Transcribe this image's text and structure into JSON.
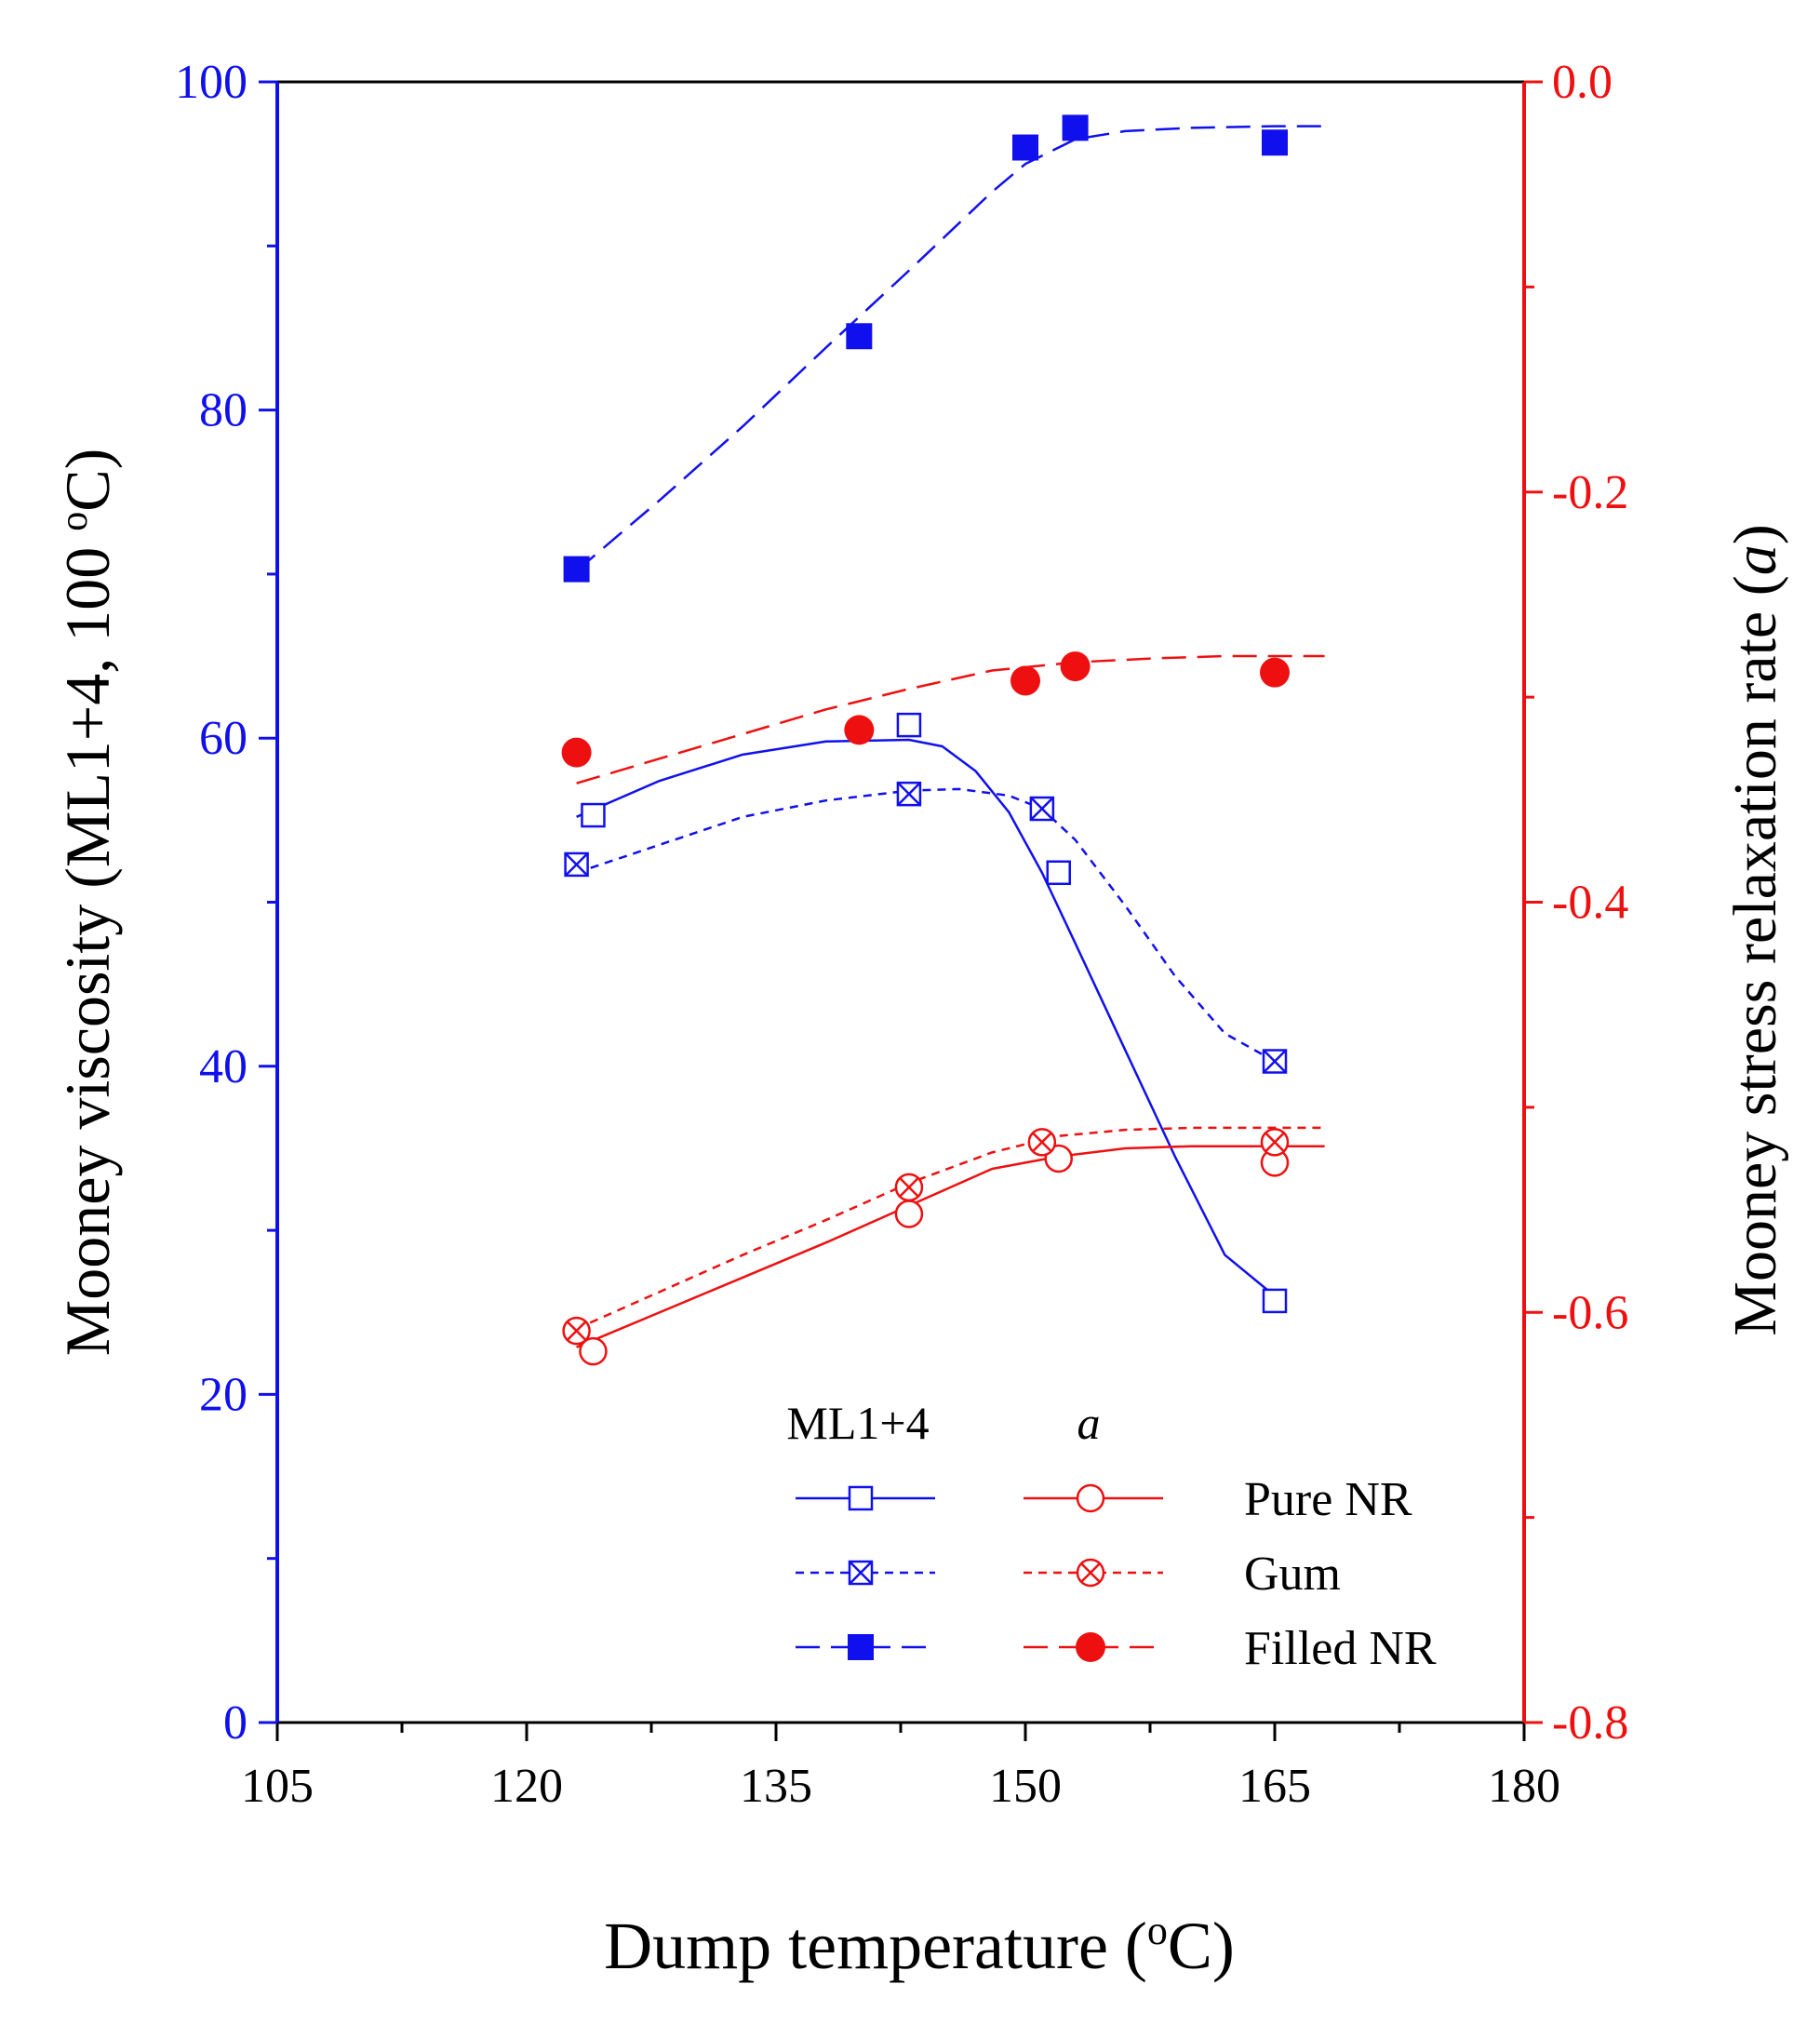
{
  "chart_data": {
    "type": "scatter",
    "xlabel_text": "Dump temperature (",
    "xlabel_sup": "o",
    "xlabel_end": "C)",
    "ylabel_left_text": "Mooney viscosity (ML1+4, 100 ",
    "ylabel_left_sup": "o",
    "ylabel_left_end": "C)",
    "ylabel_right_text": "Mooney stress relaxation rate (",
    "ylabel_right_italic": "a",
    "ylabel_right_end": ")",
    "xlim": [
      105,
      180
    ],
    "ylim_left": [
      0,
      100
    ],
    "ylim_right": [
      -0.8,
      0.0
    ],
    "x_ticks": [
      105,
      120,
      135,
      150,
      165,
      180
    ],
    "x_tick_labels": [
      "105",
      "120",
      "135",
      "150",
      "165",
      "180"
    ],
    "y_left_ticks": [
      0,
      20,
      40,
      60,
      80,
      100
    ],
    "y_left_tick_labels": [
      "0",
      "20",
      "40",
      "60",
      "80",
      "100"
    ],
    "y_right_ticks": [
      -0.8,
      -0.6,
      -0.4,
      -0.2,
      0.0
    ],
    "y_right_tick_labels": [
      "-0.8",
      "-0.6",
      "-0.4",
      "-0.2",
      "0.0"
    ],
    "colors": {
      "left": "#1010ee",
      "right": "#ee1010"
    },
    "legend": {
      "position": "bottom-right",
      "col1_title": "ML1+4",
      "col2_title": "a",
      "rows": [
        "Pure NR",
        "Gum",
        "Filled NR"
      ]
    },
    "series": [
      {
        "key": "ml_pure",
        "axis": "left",
        "color": "#1010ee",
        "marker": "open-square",
        "line": "solid",
        "x": [
          124,
          143,
          152,
          165
        ],
        "y": [
          55.3,
          60.8,
          51.8,
          25.7
        ],
        "fit_x": [
          123,
          128,
          133,
          138,
          143,
          145,
          147,
          149,
          151,
          153,
          156,
          159,
          162,
          165
        ],
        "fit_y": [
          55.2,
          57.4,
          59.0,
          59.8,
          59.9,
          59.5,
          58.0,
          55.5,
          51.8,
          47.5,
          41.0,
          34.5,
          28.5,
          26.0
        ]
      },
      {
        "key": "ml_gum",
        "axis": "left",
        "color": "#1010ee",
        "marker": "crossed-square",
        "line": "short-dash",
        "x": [
          123,
          143,
          151,
          165
        ],
        "y": [
          52.3,
          56.6,
          55.7,
          40.3
        ],
        "fit_x": [
          123,
          128,
          133,
          138,
          143,
          146,
          149,
          151,
          153,
          156,
          159,
          162,
          165
        ],
        "fit_y": [
          51.8,
          53.5,
          55.2,
          56.2,
          56.8,
          56.9,
          56.5,
          55.7,
          53.8,
          49.8,
          45.5,
          42.0,
          40.3
        ]
      },
      {
        "key": "ml_filled",
        "axis": "left",
        "color": "#1010ee",
        "marker": "filled-square",
        "line": "long-dash",
        "x": [
          123,
          140,
          150,
          153,
          165
        ],
        "y": [
          70.3,
          84.5,
          96.0,
          97.2,
          96.3
        ],
        "fit_x": [
          123,
          128,
          133,
          138,
          143,
          148,
          150,
          153,
          156,
          160,
          165,
          168
        ],
        "fit_y": [
          70.2,
          74.5,
          79.0,
          83.8,
          88.5,
          93.3,
          95.0,
          96.5,
          97.0,
          97.2,
          97.3,
          97.3
        ]
      },
      {
        "key": "a_pure",
        "axis": "right",
        "color": "#ee1010",
        "marker": "open-circle",
        "line": "solid",
        "x": [
          124,
          143,
          152,
          165
        ],
        "y": [
          -0.619,
          -0.552,
          -0.525,
          -0.527
        ],
        "fit_x": [
          123,
          128,
          133,
          138,
          143,
          148,
          152,
          156,
          160,
          165,
          168
        ],
        "fit_y": [
          -0.617,
          -0.6,
          -0.583,
          -0.566,
          -0.548,
          -0.53,
          -0.524,
          -0.52,
          -0.519,
          -0.519,
          -0.519
        ]
      },
      {
        "key": "a_gum",
        "axis": "right",
        "color": "#ee1010",
        "marker": "crossed-circle",
        "line": "short-dash",
        "x": [
          123,
          143,
          151,
          165
        ],
        "y": [
          -0.609,
          -0.539,
          -0.517,
          -0.517
        ],
        "fit_x": [
          123,
          128,
          133,
          138,
          143,
          148,
          152,
          156,
          160,
          165,
          168
        ],
        "fit_y": [
          -0.608,
          -0.59,
          -0.572,
          -0.555,
          -0.537,
          -0.522,
          -0.514,
          -0.511,
          -0.51,
          -0.51,
          -0.51
        ]
      },
      {
        "key": "a_filled",
        "axis": "right",
        "color": "#ee1010",
        "marker": "filled-circle",
        "line": "long-dash",
        "x": [
          123,
          140,
          150,
          153,
          165
        ],
        "y": [
          -0.327,
          -0.316,
          -0.292,
          -0.285,
          -0.288
        ],
        "fit_x": [
          123,
          128,
          133,
          138,
          143,
          148,
          153,
          158,
          162,
          165,
          168
        ],
        "fit_y": [
          -0.342,
          -0.33,
          -0.318,
          -0.306,
          -0.296,
          -0.287,
          -0.283,
          -0.281,
          -0.28,
          -0.28,
          -0.28
        ]
      }
    ]
  }
}
